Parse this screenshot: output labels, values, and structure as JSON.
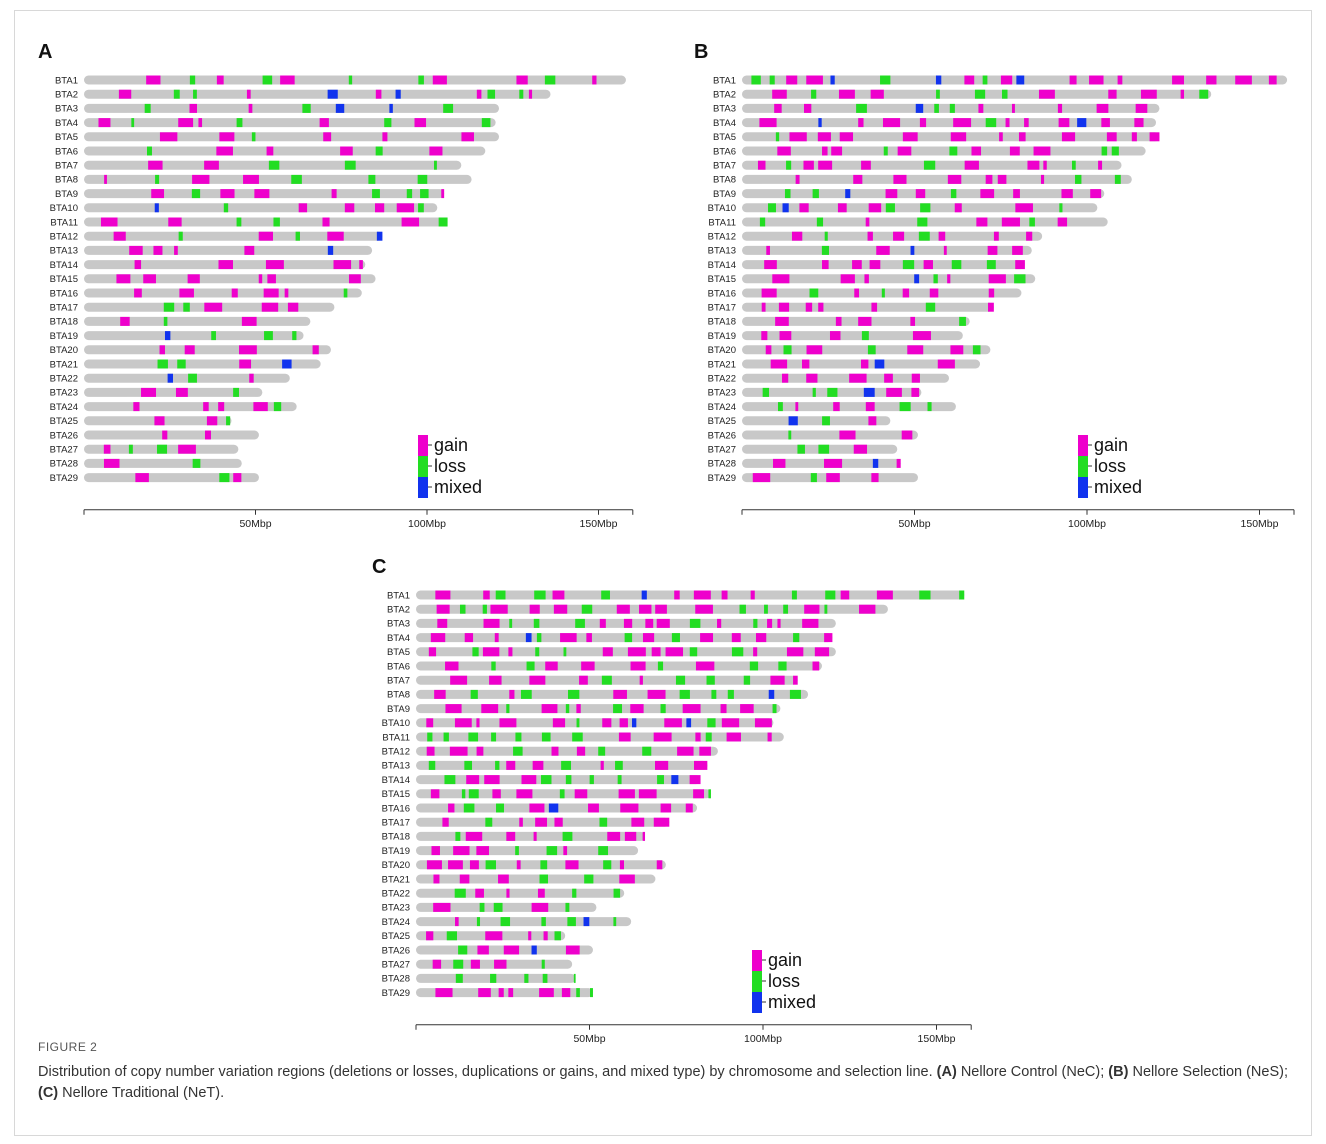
{
  "figure": {
    "label": "FIGURE 2",
    "caption_parts": [
      {
        "text": "Distribution of copy number variation regions (deletions or losses, duplications or gains, and mixed type) by chromosome and selection line. ",
        "bold": false
      },
      {
        "text": "(A)",
        "bold": true
      },
      {
        "text": " Nellore Control (NeC); ",
        "bold": false
      },
      {
        "text": "(B)",
        "bold": true
      },
      {
        "text": " Nellore Selection (NeS); ",
        "bold": false
      },
      {
        "text": "(C)",
        "bold": true
      },
      {
        "text": " Nellore Traditional (NeT).",
        "bold": false
      }
    ]
  },
  "colors": {
    "gain": "#ee00cc",
    "loss": "#22dd22",
    "mixed": "#1133ee",
    "chromosome": "#c8c8c8"
  },
  "chart_data": [
    {
      "type": "chromosome-ideogram",
      "panel": "A",
      "x_unit": "Mbp",
      "xlim": [
        0,
        160
      ],
      "x_ticks": [
        50,
        100,
        150
      ],
      "x_tick_labels": [
        "50Mbp",
        "100Mbp",
        "150Mbp"
      ],
      "legend": [
        "gain",
        "loss",
        "mixed"
      ],
      "legend_position": "bottom-right",
      "chromosomes": [
        "BTA1",
        "BTA2",
        "BTA3",
        "BTA4",
        "BTA5",
        "BTA6",
        "BTA7",
        "BTA8",
        "BTA9",
        "BTA10",
        "BTA11",
        "BTA12",
        "BTA13",
        "BTA14",
        "BTA15",
        "BTA16",
        "BTA17",
        "BTA18",
        "BTA19",
        "BTA20",
        "BTA21",
        "BTA22",
        "BTA23",
        "BTA24",
        "BTA25",
        "BTA26",
        "BTA27",
        "BTA28",
        "BTA29"
      ],
      "lengths_mbp": [
        158,
        136,
        121,
        120,
        121,
        117,
        110,
        113,
        105,
        103,
        106,
        87,
        84,
        82,
        85,
        81,
        73,
        66,
        64,
        72,
        69,
        60,
        52,
        62,
        43,
        51,
        45,
        46,
        51
      ],
      "cnv_density": 0.32
    },
    {
      "type": "chromosome-ideogram",
      "panel": "B",
      "x_unit": "Mbp",
      "xlim": [
        0,
        160
      ],
      "x_ticks": [
        50,
        100,
        150
      ],
      "x_tick_labels": [
        "50Mbp",
        "100Mbp",
        "150Mbp"
      ],
      "legend": [
        "gain",
        "loss",
        "mixed"
      ],
      "legend_position": "bottom-right",
      "chromosomes": [
        "BTA1",
        "BTA2",
        "BTA3",
        "BTA4",
        "BTA5",
        "BTA6",
        "BTA7",
        "BTA8",
        "BTA9",
        "BTA10",
        "BTA11",
        "BTA12",
        "BTA13",
        "BTA14",
        "BTA15",
        "BTA16",
        "BTA17",
        "BTA18",
        "BTA19",
        "BTA20",
        "BTA21",
        "BTA22",
        "BTA23",
        "BTA24",
        "BTA25",
        "BTA26",
        "BTA27",
        "BTA28",
        "BTA29"
      ],
      "lengths_mbp": [
        158,
        136,
        121,
        120,
        121,
        117,
        110,
        113,
        105,
        103,
        106,
        87,
        84,
        82,
        85,
        81,
        73,
        66,
        64,
        72,
        69,
        60,
        52,
        62,
        43,
        51,
        45,
        46,
        51
      ],
      "cnv_density": 0.48
    },
    {
      "type": "chromosome-ideogram",
      "panel": "C",
      "x_unit": "Mbp",
      "xlim": [
        0,
        160
      ],
      "x_ticks": [
        50,
        100,
        150
      ],
      "x_tick_labels": [
        "50Mbp",
        "100Mbp",
        "150Mbp"
      ],
      "legend": [
        "gain",
        "loss",
        "mixed"
      ],
      "legend_position": "bottom-right",
      "chromosomes": [
        "BTA1",
        "BTA2",
        "BTA3",
        "BTA4",
        "BTA5",
        "BTA6",
        "BTA7",
        "BTA8",
        "BTA9",
        "BTA10",
        "BTA11",
        "BTA12",
        "BTA13",
        "BTA14",
        "BTA15",
        "BTA16",
        "BTA17",
        "BTA18",
        "BTA19",
        "BTA20",
        "BTA21",
        "BTA22",
        "BTA23",
        "BTA24",
        "BTA25",
        "BTA26",
        "BTA27",
        "BTA28",
        "BTA29"
      ],
      "lengths_mbp": [
        158,
        136,
        121,
        120,
        121,
        117,
        110,
        113,
        105,
        103,
        106,
        87,
        84,
        82,
        85,
        81,
        73,
        66,
        64,
        72,
        69,
        60,
        52,
        62,
        43,
        51,
        45,
        46,
        51
      ],
      "cnv_density": 0.72
    }
  ]
}
